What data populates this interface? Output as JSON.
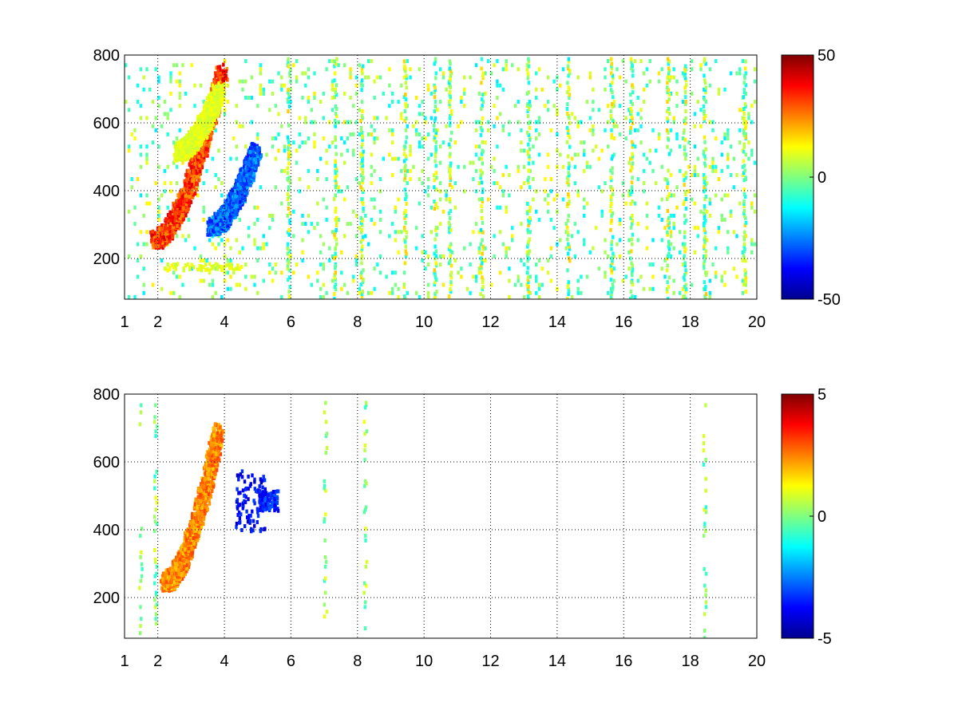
{
  "chart_data": [
    {
      "type": "heatmap",
      "title": "",
      "xlabel": "",
      "ylabel": "",
      "xlim": [
        1,
        20
      ],
      "ylim": [
        80,
        800
      ],
      "x_ticks": [
        1,
        2,
        4,
        6,
        8,
        10,
        12,
        14,
        16,
        18,
        20
      ],
      "x_grid": [
        2,
        4,
        6,
        8,
        10,
        12,
        14,
        16,
        18,
        20
      ],
      "y_ticks": [
        200,
        400,
        600,
        800
      ],
      "grid": true,
      "grid_style": "dotted",
      "colorbar": {
        "min": -50,
        "max": 50,
        "ticks": [
          -50,
          0,
          50
        ],
        "colormap": "jet",
        "position": "right"
      },
      "features": [
        {
          "kind": "ridge",
          "description": "positive arc",
          "x_start": 1.9,
          "y_start": 260,
          "x_end": 3.9,
          "y_end": 760,
          "value": 40
        },
        {
          "kind": "ridge",
          "description": "negative arc",
          "x_start": 3.6,
          "y_start": 300,
          "x_end": 4.9,
          "y_end": 520,
          "value": -35
        },
        {
          "kind": "ridge",
          "description": "weak positive arc",
          "x_start": 2.6,
          "y_start": 520,
          "x_end": 3.8,
          "y_end": 700,
          "value": 12
        },
        {
          "kind": "band",
          "description": "weak positive band",
          "x_start": 2.2,
          "x_end": 4.5,
          "y": 180,
          "value": 12
        }
      ],
      "noise_value_range": [
        -15,
        15
      ],
      "vertical_streaks_x": [
        5.9,
        7.3,
        8.1,
        9.4,
        10.3,
        10.75,
        11.7,
        13.1,
        14.3,
        15.6,
        16.2,
        17.3,
        17.8,
        18.4,
        19.6
      ]
    },
    {
      "type": "heatmap",
      "title": "",
      "xlabel": "",
      "ylabel": "",
      "xlim": [
        1,
        20
      ],
      "ylim": [
        80,
        800
      ],
      "x_ticks": [
        1,
        2,
        4,
        6,
        8,
        10,
        12,
        14,
        16,
        18,
        20
      ],
      "x_grid": [
        2,
        4,
        6,
        8,
        10,
        12,
        14,
        16,
        18,
        20
      ],
      "y_ticks": [
        200,
        400,
        600,
        800
      ],
      "grid": true,
      "grid_style": "dotted",
      "colorbar": {
        "min": -5,
        "max": 5,
        "ticks": [
          -5,
          0,
          5
        ],
        "colormap": "jet",
        "position": "right"
      },
      "features": [
        {
          "kind": "ridge",
          "description": "positive arc",
          "x_start": 2.2,
          "y_start": 250,
          "x_end": 3.8,
          "y_end": 700,
          "value": 3
        },
        {
          "kind": "cluster",
          "description": "negative patch",
          "x_start": 4.3,
          "x_end": 5.2,
          "y_start": 400,
          "y_end": 580,
          "value": -4.5
        },
        {
          "kind": "cluster",
          "description": "negative spots",
          "x_start": 5.0,
          "x_end": 5.6,
          "y_start": 460,
          "y_end": 520,
          "value": -4
        }
      ],
      "noise_value_range": [
        -1,
        1
      ],
      "vertical_streaks_x": [
        1.45,
        1.9,
        7.0,
        8.2,
        18.4
      ]
    }
  ]
}
